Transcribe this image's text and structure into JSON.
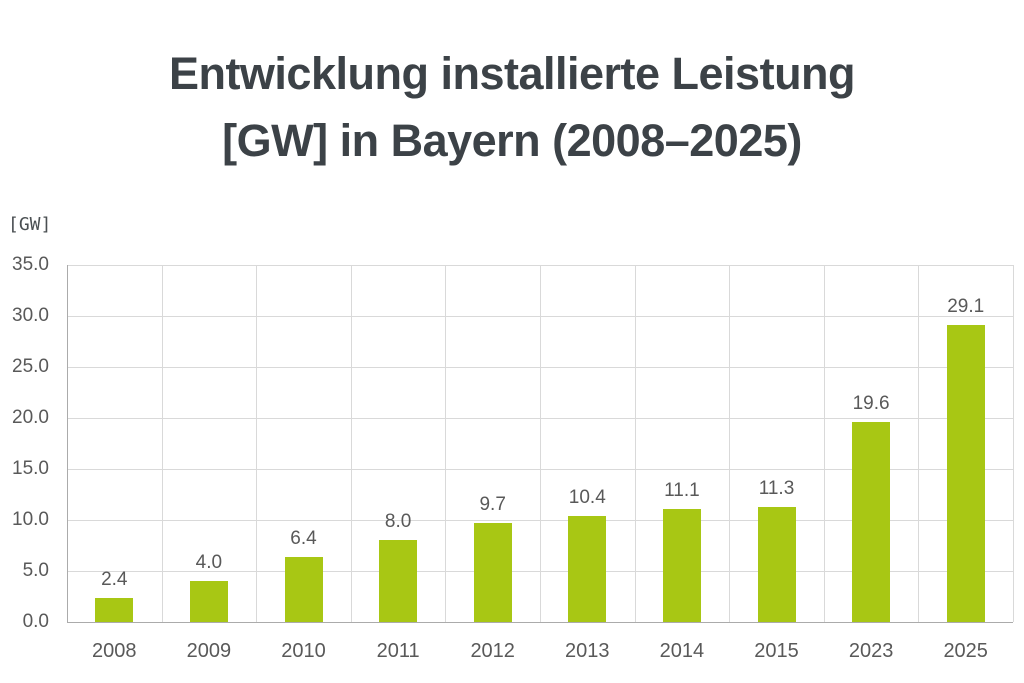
{
  "title": {
    "line1": "Entwicklung installierte Leistung",
    "line2": "[GW] in Bayern (2008–2025)"
  },
  "chart_data": {
    "type": "bar",
    "title": "Entwicklung installierte Leistung [GW] in Bayern (2008–2025)",
    "unit_label": "[GW]",
    "categories": [
      "2008",
      "2009",
      "2010",
      "2011",
      "2012",
      "2013",
      "2014",
      "2015",
      "2023",
      "2025"
    ],
    "values": [
      2.4,
      4.0,
      6.4,
      8.0,
      9.7,
      10.4,
      11.1,
      11.3,
      19.6,
      29.1
    ],
    "value_labels": [
      "2.4",
      "4.0",
      "6.4",
      "8.0",
      "9.7",
      "10.4",
      "11.1",
      "11.3",
      "19.6",
      "29.1"
    ],
    "xlabel": "",
    "ylabel": "[GW]",
    "ylim": [
      0,
      35
    ],
    "ytick_step": 5,
    "ytick_labels": [
      "0.0",
      "5.0",
      "10.0",
      "15.0",
      "20.0",
      "25.0",
      "30.0",
      "35.0"
    ],
    "grid": true,
    "legend": false,
    "colors": {
      "bar": "#a8c714",
      "grid": "#d9d9d9",
      "axis": "#ababab",
      "tick_text": "#595959",
      "value_text": "#595959",
      "title_text": "#3c4247"
    }
  }
}
